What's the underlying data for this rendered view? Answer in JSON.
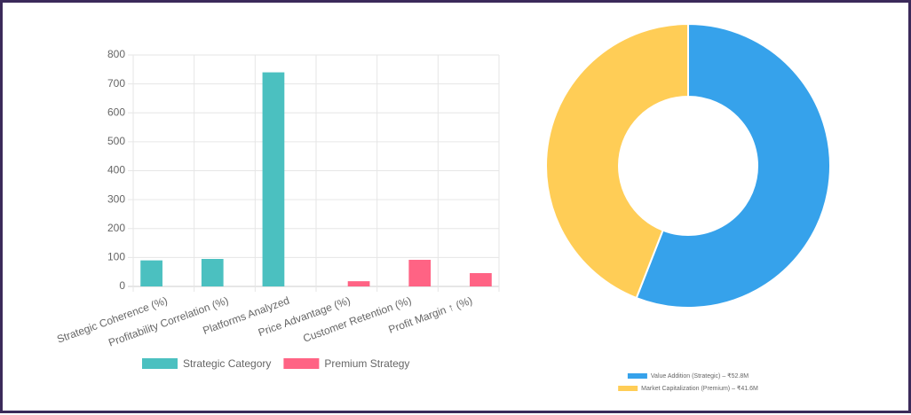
{
  "chart_data": [
    {
      "type": "bar",
      "categories": [
        "Strategic Coherence (%)",
        "Profitability Correlation (%)",
        "Platforms Analyzed",
        "Price Advantage (%)",
        "Customer Retention (%)",
        "Profit Margin ↑ (%)"
      ],
      "series": [
        {
          "name": "Strategic Category",
          "color": "#4bc0c0",
          "values": [
            90,
            95,
            740,
            null,
            null,
            null
          ]
        },
        {
          "name": "Premium Strategy",
          "color": "#ff6384",
          "values": [
            null,
            null,
            null,
            18,
            92,
            46
          ]
        }
      ],
      "ylim": [
        0,
        800
      ],
      "yticks": [
        0,
        100,
        200,
        300,
        400,
        500,
        600,
        700,
        800
      ],
      "grid": true,
      "legend": "bottom"
    },
    {
      "type": "doughnut",
      "labels": [
        "Value Addition (Strategic) – ₹52.8M",
        "Market Capitalization (Premium) – ₹41.6M"
      ],
      "values": [
        52.8,
        41.6
      ],
      "colors": [
        "#36a2eb",
        "#ffcd56"
      ],
      "legend": "bottom"
    }
  ]
}
